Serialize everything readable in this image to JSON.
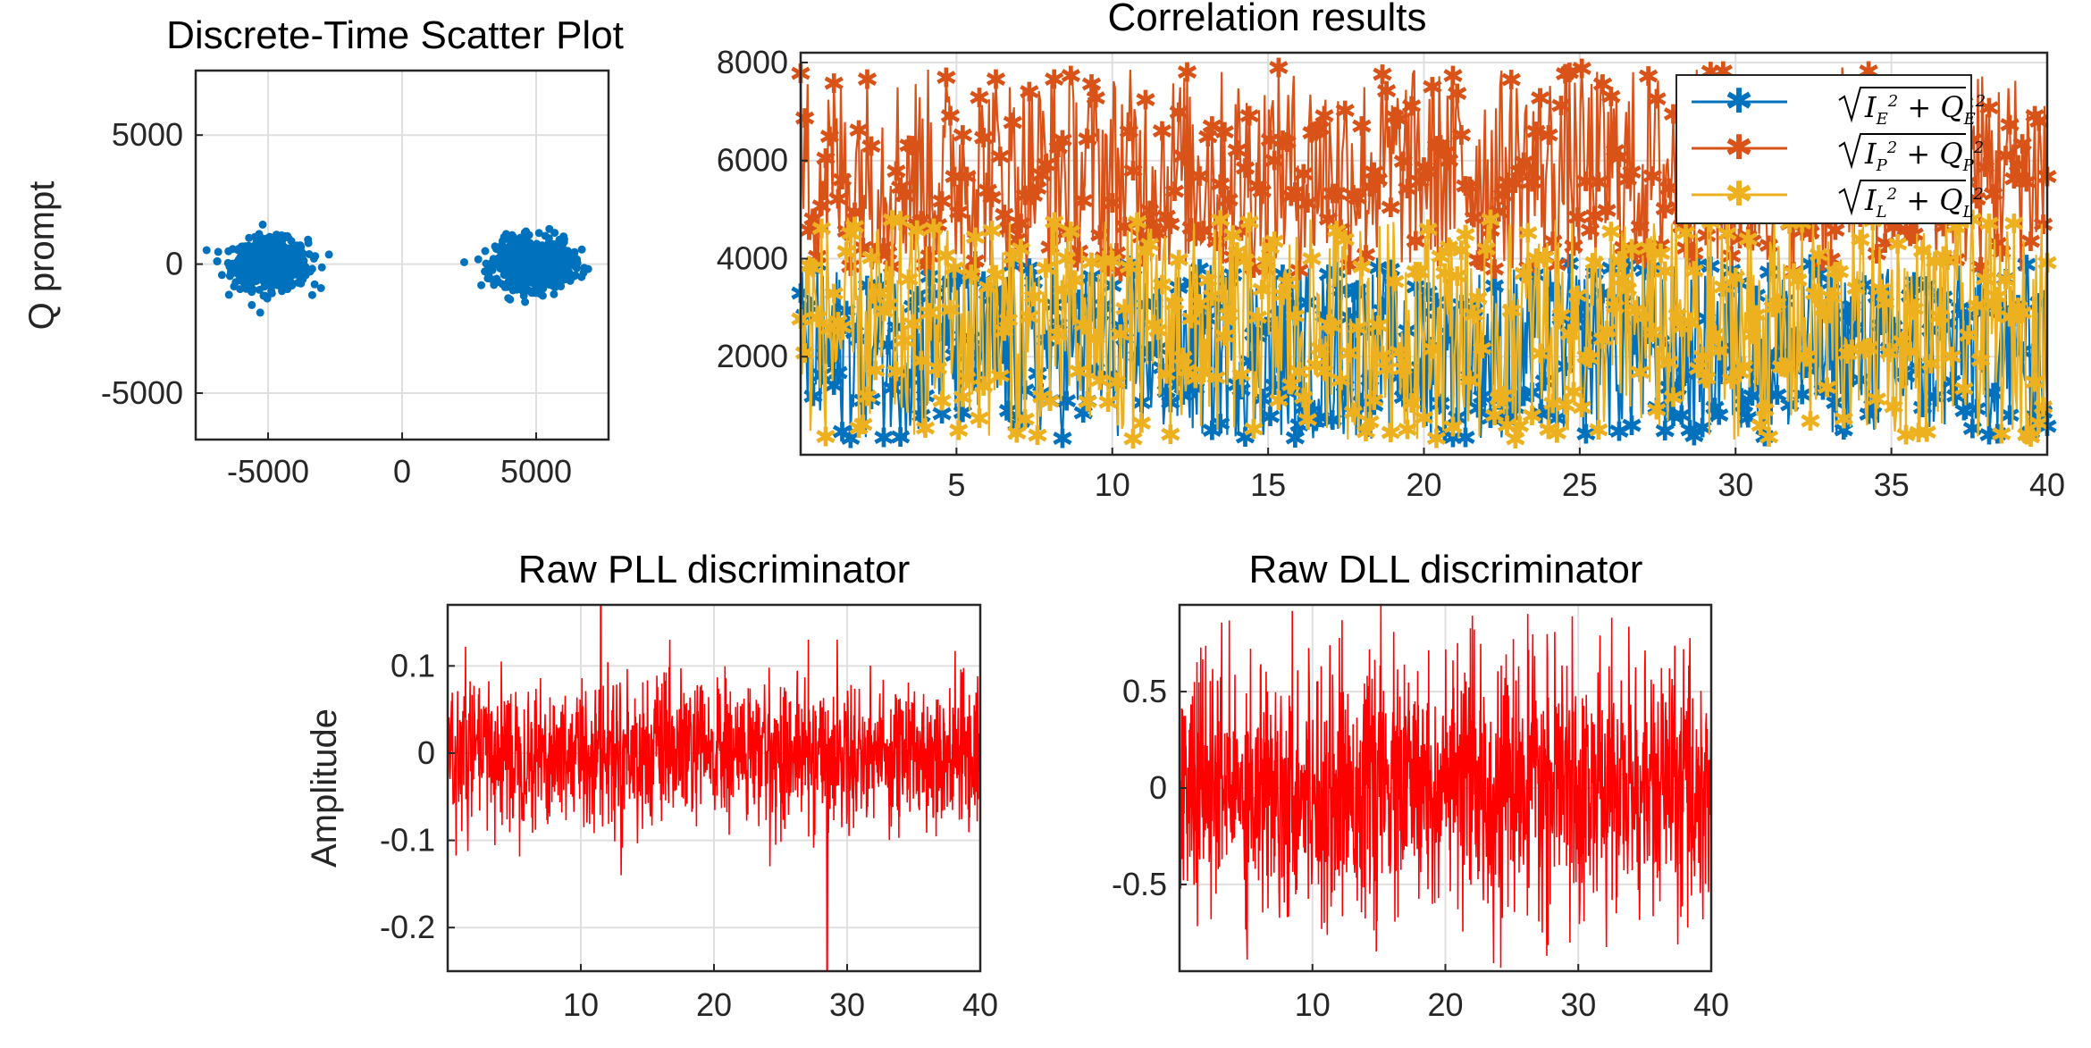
{
  "chart_data": [
    {
      "id": "scatter",
      "type": "scatter",
      "title": "Discrete-Time Scatter Plot",
      "xlabel": "",
      "ylabel": "Q prompt",
      "xlim": [
        -7700,
        7700
      ],
      "ylim": [
        -6800,
        7500
      ],
      "xticks": [
        -5000,
        0,
        5000
      ],
      "yticks": [
        5000,
        0,
        -5000
      ],
      "xtick_labels": [
        "-5000",
        "0",
        "5000"
      ],
      "ytick_labels": [
        "5000",
        "0",
        "-5000"
      ],
      "grid": true,
      "color": "#0072BD",
      "clusters": [
        {
          "center_x": -4900,
          "center_y": 0,
          "spread_x": 1250,
          "spread_y": 850,
          "count": 700
        },
        {
          "center_x": 4900,
          "center_y": 0,
          "spread_x": 1250,
          "spread_y": 850,
          "count": 700
        }
      ]
    },
    {
      "id": "corr",
      "type": "line",
      "title": "Correlation results",
      "xlabel": "",
      "ylabel": "",
      "xlim": [
        0,
        40
      ],
      "ylim": [
        0,
        8200
      ],
      "xticks": [
        5,
        10,
        15,
        20,
        25,
        30,
        35,
        40
      ],
      "xtick_labels": [
        "5",
        "10",
        "15",
        "20",
        "25",
        "30",
        "35",
        "40"
      ],
      "yticks": [
        2000,
        4000,
        6000,
        8000
      ],
      "ytick_labels": [
        "2000",
        "4000",
        "6000",
        "8000"
      ],
      "grid": true,
      "legend_position": "top-right",
      "marker": "*",
      "series": [
        {
          "name": "√(I_E² + Q_E²)",
          "color": "#0072BD",
          "mean": 1600,
          "band": [
            300,
            3900
          ]
        },
        {
          "name": "√(I_P² + Q_P²)",
          "color": "#D95319",
          "mean": 5600,
          "band": [
            3700,
            7900
          ]
        },
        {
          "name": "√(I_L² + Q_L²)",
          "color": "#EDB120",
          "mean": 1800,
          "band": [
            300,
            4800
          ]
        }
      ],
      "legend": [
        "√(I_E² + Q_E²)",
        "√(I_P² + Q_P²)",
        "√(I_L² + Q_L²)"
      ]
    },
    {
      "id": "pll",
      "type": "line",
      "title": "Raw PLL discriminator",
      "xlabel": "",
      "ylabel": "Amplitude",
      "xlim": [
        0,
        40
      ],
      "ylim": [
        -0.25,
        0.17
      ],
      "xticks": [
        10,
        20,
        30,
        40
      ],
      "xtick_labels": [
        "10",
        "20",
        "30",
        "40"
      ],
      "yticks": [
        0.1,
        0,
        -0.1,
        -0.2
      ],
      "ytick_labels": [
        "0.1",
        "0",
        "-0.1",
        "-0.2"
      ],
      "grid": true,
      "color": "#FF0000",
      "noise_band": [
        -0.1,
        0.11
      ],
      "notable": [
        {
          "x": 28.5,
          "y": -0.25
        },
        {
          "x": 11.5,
          "y": 0.17
        }
      ]
    },
    {
      "id": "dll",
      "type": "line",
      "title": "Raw DLL discriminator",
      "xlabel": "",
      "ylabel": "",
      "xlim": [
        0,
        40
      ],
      "ylim": [
        -0.95,
        0.95
      ],
      "xticks": [
        10,
        20,
        30,
        40
      ],
      "xtick_labels": [
        "10",
        "20",
        "30",
        "40"
      ],
      "yticks": [
        0.5,
        0,
        -0.5
      ],
      "ytick_labels": [
        "0.5",
        "0",
        "-0.5"
      ],
      "grid": true,
      "color": "#FF0000",
      "noise_band": [
        -0.75,
        0.75
      ]
    }
  ],
  "legend_labels": {
    "early": {
      "base": "I",
      "sub": "E",
      "base2": "Q",
      "sub2": "E"
    },
    "prompt": {
      "base": "I",
      "sub": "P",
      "base2": "Q",
      "sub2": "P"
    },
    "late": {
      "base": "I",
      "sub": "L",
      "base2": "Q",
      "sub2": "L"
    }
  }
}
